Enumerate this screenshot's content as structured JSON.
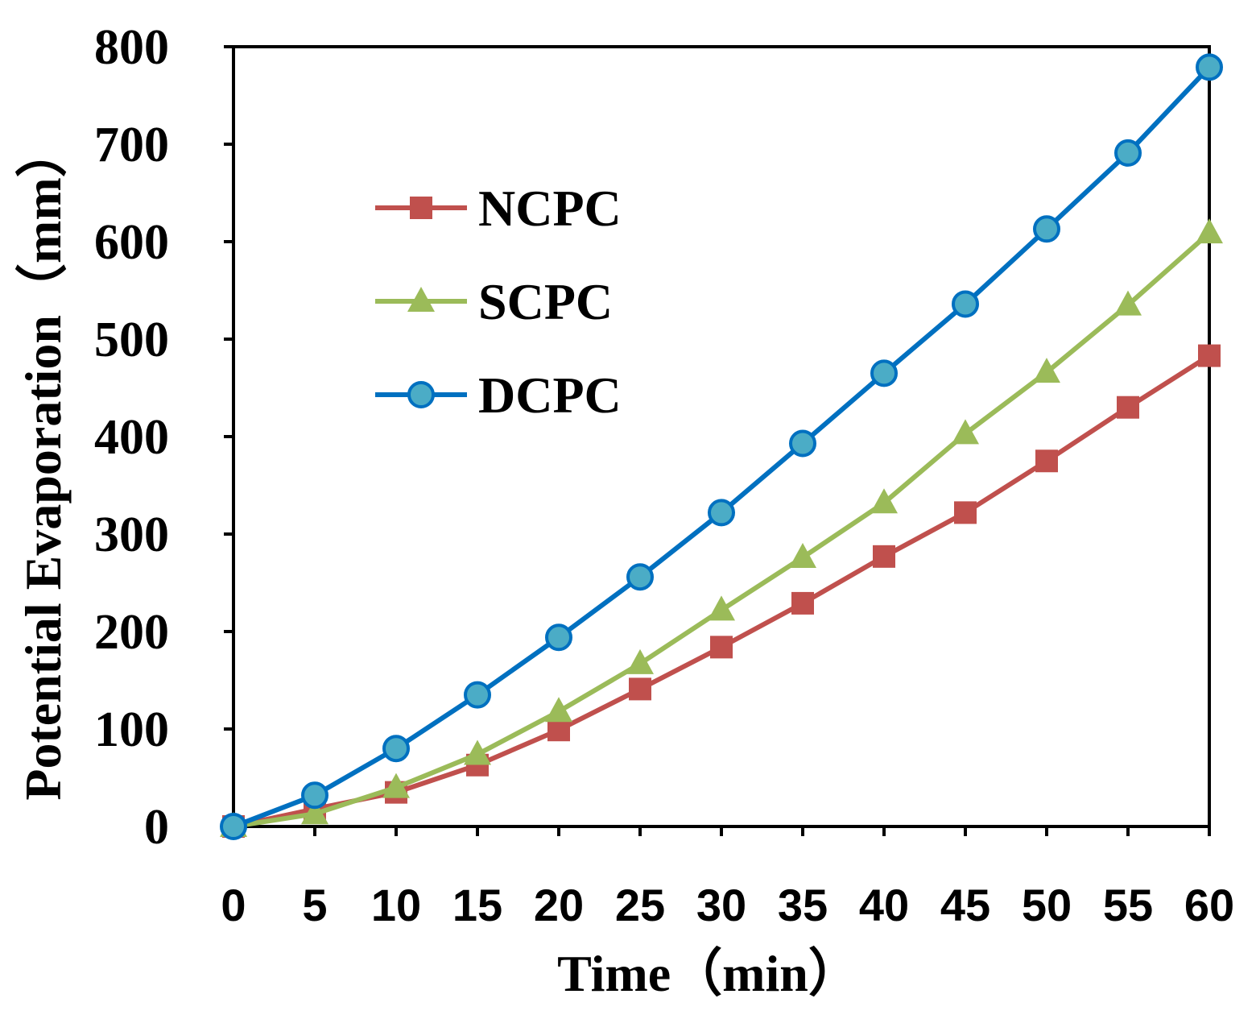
{
  "chart_data": {
    "type": "line",
    "title": "",
    "xlabel": "Time（min）",
    "ylabel": "Potential Evaporation（mm）",
    "x": [
      0,
      5,
      10,
      15,
      20,
      25,
      30,
      35,
      40,
      45,
      50,
      55,
      60
    ],
    "x_tick_labels": [
      "0",
      "5",
      "10",
      "15",
      "20",
      "25",
      "30",
      "35",
      "40",
      "45",
      "50",
      "55",
      "60"
    ],
    "y_tick_labels": [
      "0",
      "100",
      "200",
      "300",
      "400",
      "500",
      "600",
      "700",
      "800"
    ],
    "xlim": [
      0,
      60
    ],
    "ylim": [
      0,
      800
    ],
    "grid": false,
    "legend_position": "upper-left",
    "series": [
      {
        "name": "NCPC",
        "color": "#C0504D",
        "marker": "square",
        "values": [
          0,
          18,
          35,
          63,
          99,
          141,
          184,
          229,
          277,
          322,
          375,
          430,
          483
        ]
      },
      {
        "name": "SCPC",
        "color": "#9BBB59",
        "marker": "triangle",
        "values": [
          0,
          13,
          40,
          74,
          118,
          167,
          222,
          276,
          332,
          403,
          466,
          535,
          609
        ]
      },
      {
        "name": "DCPC",
        "color": "#0070C0",
        "marker_fill": "#4BACC6",
        "marker": "circle",
        "values": [
          0,
          32,
          80,
          135,
          194,
          256,
          322,
          393,
          465,
          536,
          613,
          691,
          779
        ]
      }
    ]
  }
}
